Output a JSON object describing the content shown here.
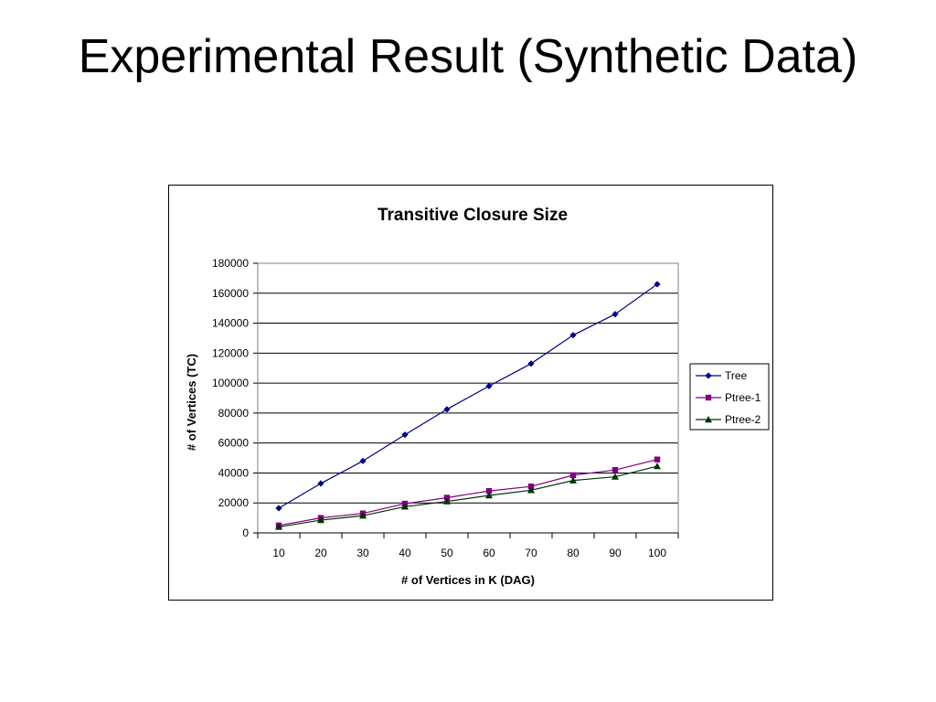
{
  "slide": {
    "title": "Experimental Result (Synthetic Data)"
  },
  "chart_data": {
    "type": "line",
    "title": "Transitive Closure Size",
    "xlabel": "# of Vertices in K (DAG)",
    "ylabel": "# of Vertices (TC)",
    "categories": [
      "10",
      "20",
      "30",
      "40",
      "50",
      "60",
      "70",
      "80",
      "90",
      "100"
    ],
    "ylim": [
      0,
      180000
    ],
    "yticks": [
      0,
      20000,
      40000,
      60000,
      80000,
      100000,
      120000,
      140000,
      160000,
      180000
    ],
    "grid": true,
    "legend_position": "right",
    "series": [
      {
        "name": "Tree",
        "color": "#000080",
        "marker": "diamond",
        "values": [
          16500,
          33000,
          48000,
          65500,
          82500,
          98000,
          113000,
          132000,
          146000,
          166000
        ]
      },
      {
        "name": "Ptree-1",
        "color": "#800080",
        "marker": "square",
        "values": [
          5000,
          10000,
          13000,
          19500,
          23500,
          28000,
          31000,
          38500,
          42000,
          49000
        ]
      },
      {
        "name": "Ptree-2",
        "color": "#003300",
        "marker": "triangle",
        "values": [
          4000,
          8500,
          11500,
          17500,
          21000,
          25000,
          28500,
          35000,
          37500,
          44500
        ]
      }
    ]
  }
}
